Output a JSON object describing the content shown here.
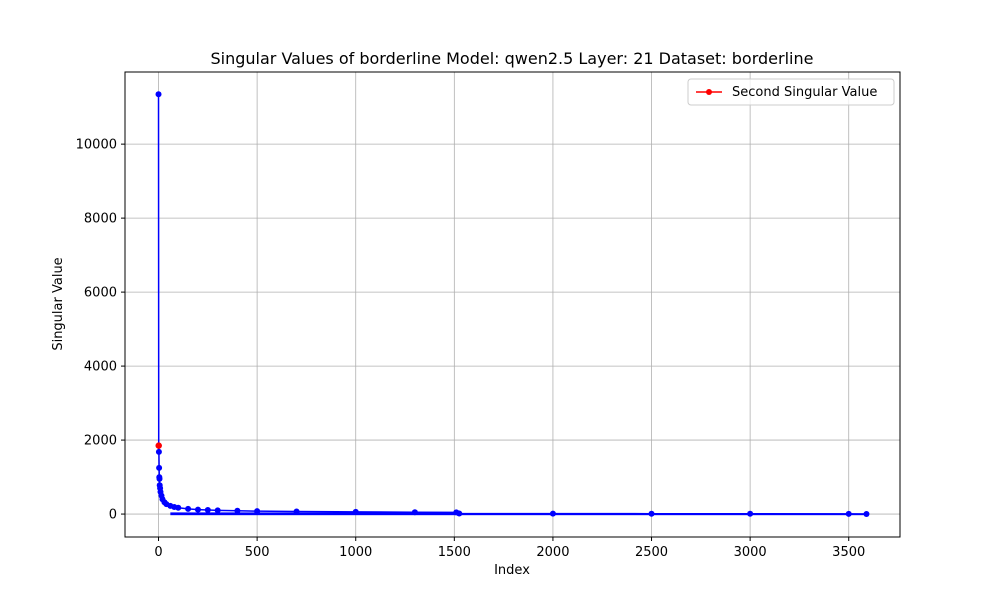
{
  "chart_data": {
    "type": "line",
    "title": "Singular Values of borderline Model: qwen2.5 Layer: 21 Dataset: borderline",
    "xlabel": "Index",
    "ylabel": "Singular Value",
    "xlim": [
      -170,
      3760
    ],
    "ylim": [
      -620,
      11950
    ],
    "xticks": [
      0,
      500,
      1000,
      1500,
      2000,
      2500,
      3000,
      3500
    ],
    "xtick_labels": [
      "0",
      "500",
      "1000",
      "1500",
      "2000",
      "2500",
      "3000",
      "3500"
    ],
    "yticks": [
      0,
      2000,
      4000,
      6000,
      8000,
      10000
    ],
    "ytick_labels": [
      "0",
      "2000",
      "4000",
      "6000",
      "8000",
      "10000"
    ],
    "grid": true,
    "legend": {
      "position": "top-right",
      "entries": [
        "Second Singular Value"
      ]
    },
    "series": [
      {
        "name": "",
        "color": "#0000ff",
        "marker": "circle",
        "x": [
          0,
          1,
          2,
          3,
          4,
          5,
          6,
          8,
          10,
          15,
          20,
          30,
          40,
          60,
          80,
          100,
          150,
          200,
          250,
          300,
          400,
          500,
          700,
          1000,
          1300,
          1510,
          1525,
          2000,
          2500,
          3000,
          3500,
          3590
        ],
        "y": [
          11350,
          1850,
          1680,
          1250,
          1000,
          950,
          780,
          700,
          600,
          500,
          400,
          320,
          270,
          220,
          190,
          170,
          140,
          120,
          110,
          100,
          90,
          80,
          70,
          60,
          50,
          45,
          15,
          12,
          10,
          8,
          5,
          3
        ]
      },
      {
        "name": "Second Singular Value",
        "color": "#ff0000",
        "marker": "circle",
        "x": [
          1
        ],
        "y": [
          1850
        ]
      }
    ]
  }
}
